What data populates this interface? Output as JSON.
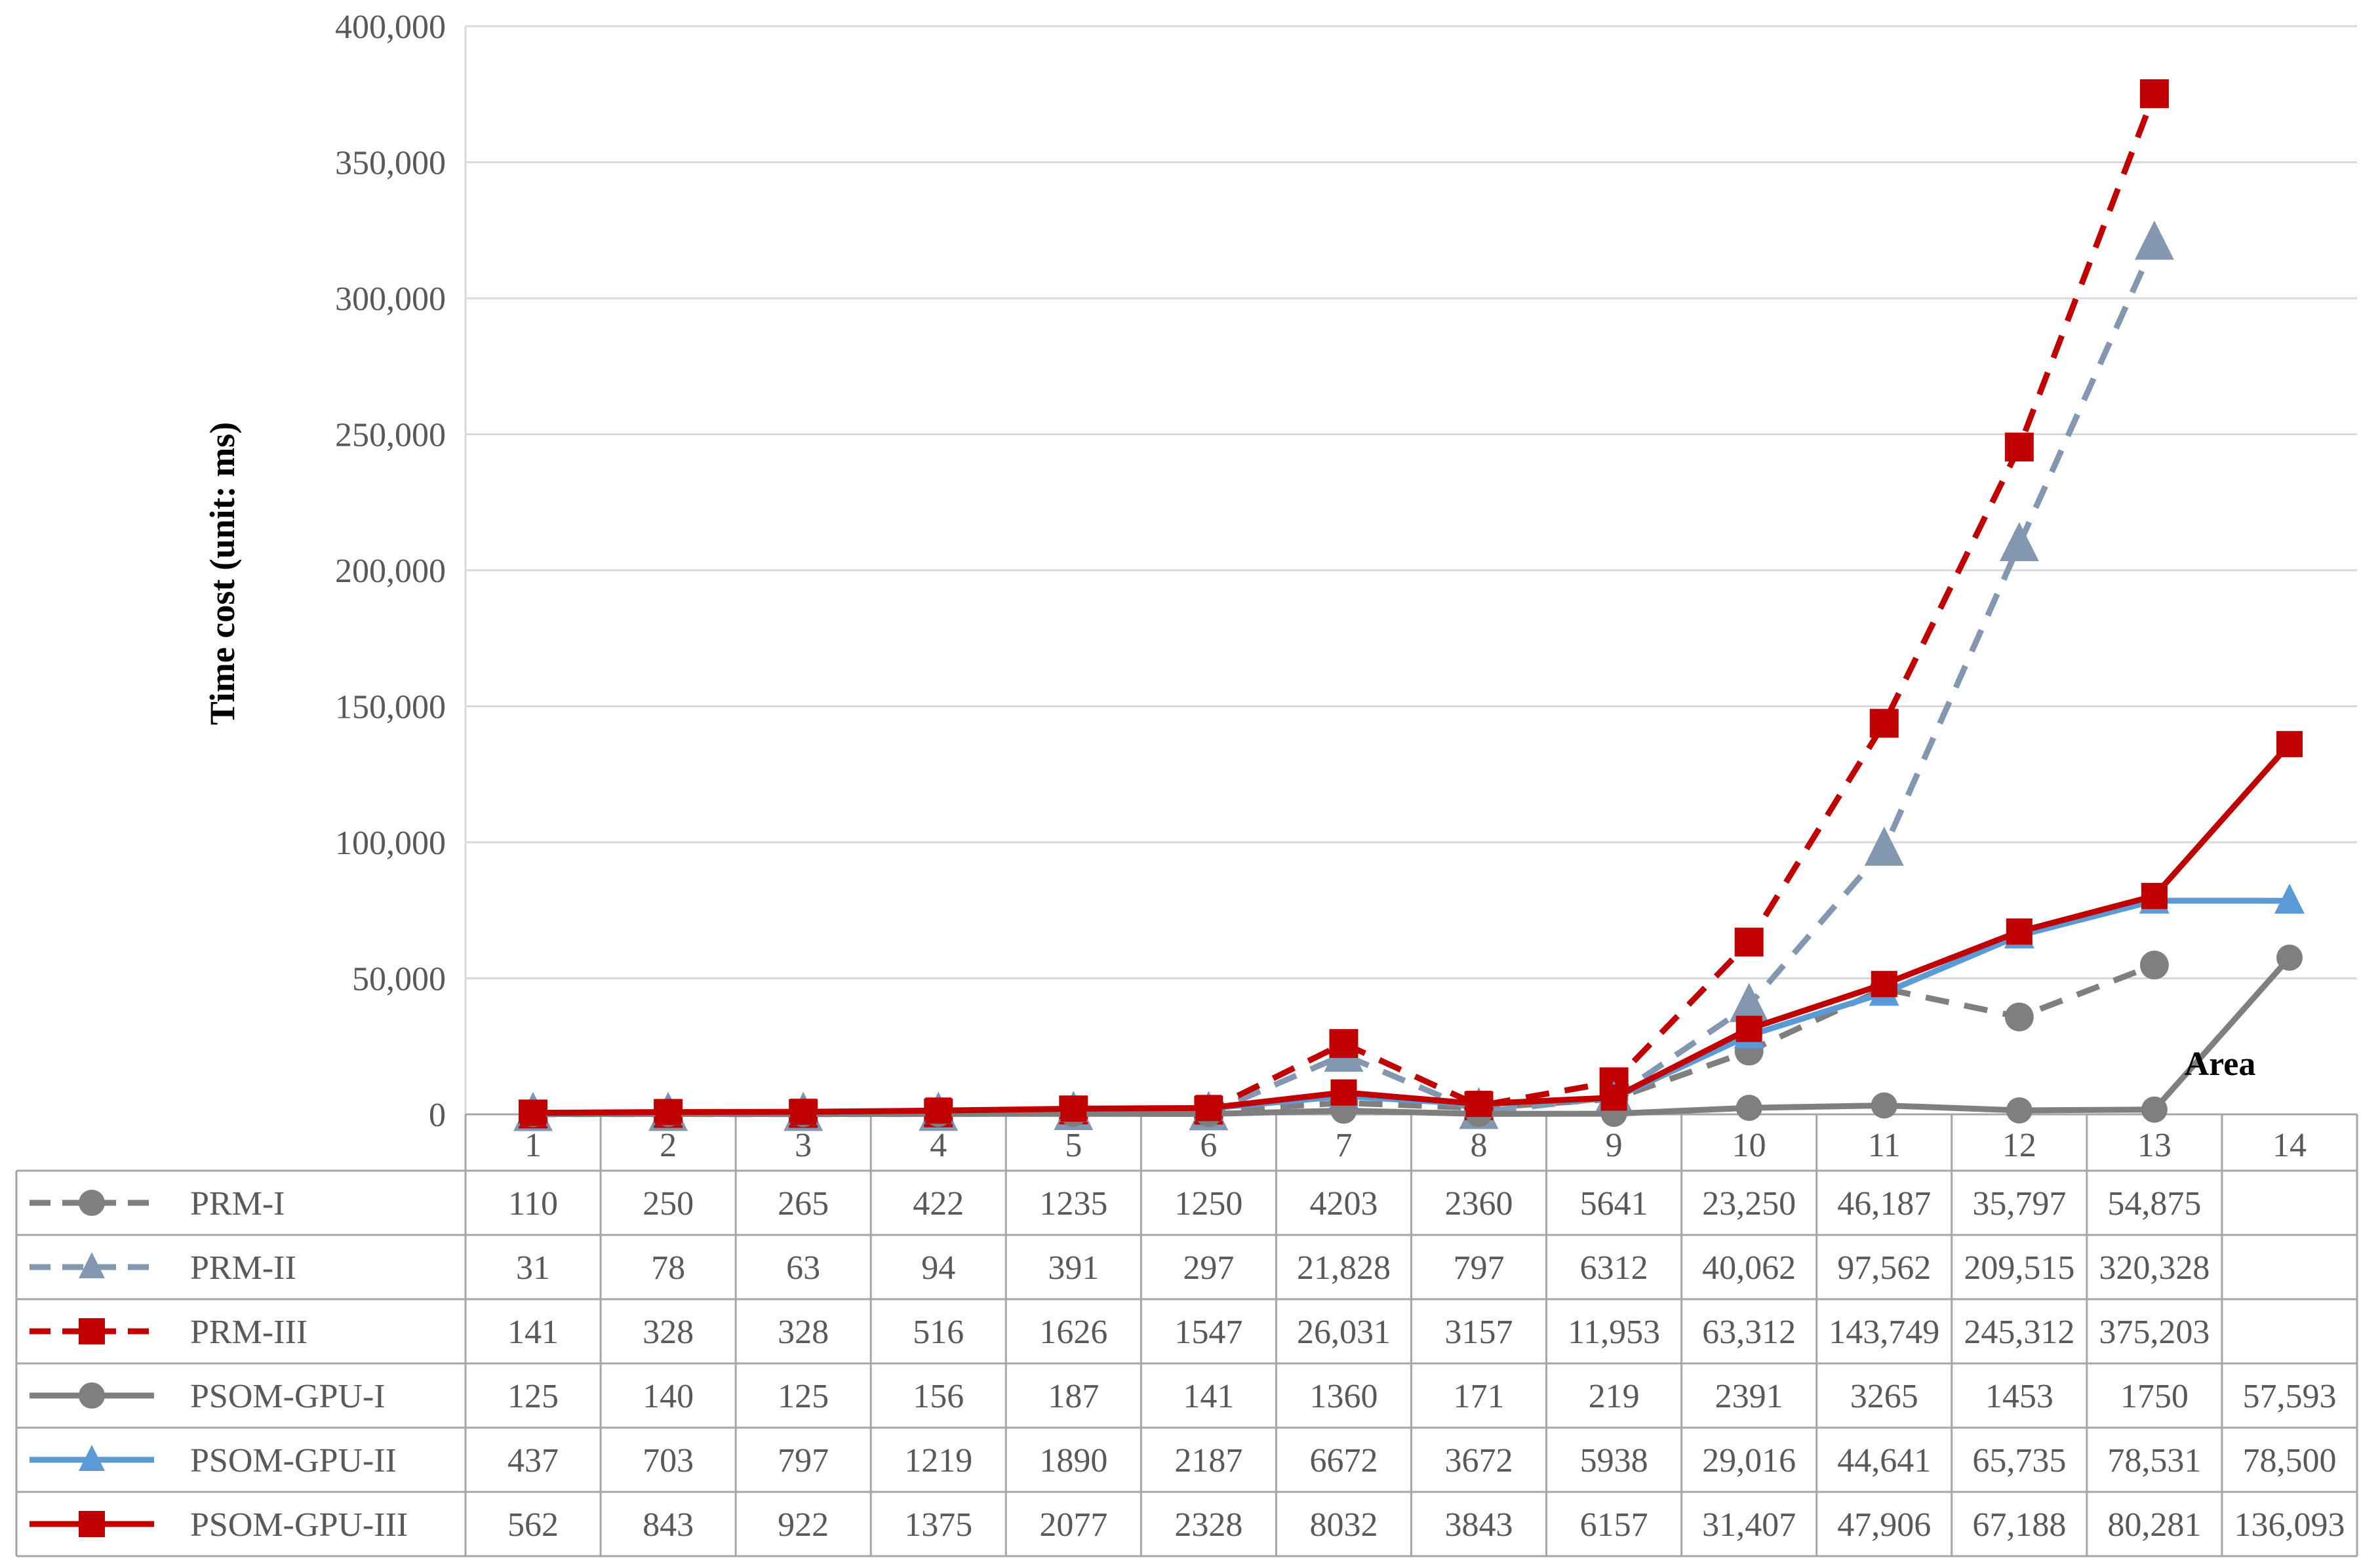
{
  "chart_data": {
    "type": "line",
    "ylabel": "Time cost (unit: ms)",
    "xlabel": "Area",
    "categories": [
      "1",
      "2",
      "3",
      "4",
      "5",
      "6",
      "7",
      "8",
      "9",
      "10",
      "11",
      "12",
      "13",
      "14"
    ],
    "ylim": [
      0,
      400000
    ],
    "yticks": [
      0,
      50000,
      100000,
      150000,
      200000,
      250000,
      300000,
      350000,
      400000
    ],
    "ytick_labels": [
      "0",
      "50,000",
      "100,000",
      "150,000",
      "200,000",
      "250,000",
      "300,000",
      "350,000",
      "400,000"
    ],
    "grid": true,
    "legend_placement": "data table below the plot",
    "series": [
      {
        "name": "PRM-I",
        "color": "#7f7f7f",
        "line": "dashed",
        "marker": "circle",
        "values": [
          110,
          250,
          265,
          422,
          1235,
          1250,
          4203,
          2360,
          5641,
          23250,
          46187,
          35797,
          54875,
          null
        ],
        "labels": [
          "110",
          "250",
          "265",
          "422",
          "1235",
          "1250",
          "4203",
          "2360",
          "5641",
          "23,250",
          "46,187",
          "35,797",
          "54,875",
          ""
        ]
      },
      {
        "name": "PRM-II",
        "color": "#8497b0",
        "line": "dashed",
        "marker": "triangle",
        "values": [
          31,
          78,
          63,
          94,
          391,
          297,
          21828,
          797,
          6312,
          40062,
          97562,
          209515,
          320328,
          null
        ],
        "labels": [
          "31",
          "78",
          "63",
          "94",
          "391",
          "297",
          "21,828",
          "797",
          "6312",
          "40,062",
          "97,562",
          "209,515",
          "320,328",
          ""
        ]
      },
      {
        "name": "PRM-III",
        "color": "#c00000",
        "line": "dashed",
        "marker": "square",
        "values": [
          141,
          328,
          328,
          516,
          1626,
          1547,
          26031,
          3157,
          11953,
          63312,
          143749,
          245312,
          375203,
          null
        ],
        "labels": [
          "141",
          "328",
          "328",
          "516",
          "1626",
          "1547",
          "26,031",
          "3157",
          "11,953",
          "63,312",
          "143,749",
          "245,312",
          "375,203",
          ""
        ]
      },
      {
        "name": "PSOM-GPU-I",
        "color": "#7f7f7f",
        "line": "solid",
        "marker": "circle",
        "values": [
          125,
          140,
          125,
          156,
          187,
          141,
          1360,
          171,
          219,
          2391,
          3265,
          1453,
          1750,
          57593
        ],
        "labels": [
          "125",
          "140",
          "125",
          "156",
          "187",
          "141",
          "1360",
          "171",
          "219",
          "2391",
          "3265",
          "1453",
          "1750",
          "57,593"
        ]
      },
      {
        "name": "PSOM-GPU-II",
        "color": "#5b9bd5",
        "line": "solid",
        "marker": "triangle",
        "values": [
          437,
          703,
          797,
          1219,
          1890,
          2187,
          6672,
          3672,
          5938,
          29016,
          44641,
          65735,
          78531,
          78500
        ],
        "labels": [
          "437",
          "703",
          "797",
          "1219",
          "1890",
          "2187",
          "6672",
          "3672",
          "5938",
          "29,016",
          "44,641",
          "65,735",
          "78,531",
          "78,500"
        ]
      },
      {
        "name": "PSOM-GPU-III",
        "color": "#c00000",
        "line": "solid",
        "marker": "square",
        "values": [
          562,
          843,
          922,
          1375,
          2077,
          2328,
          8032,
          3843,
          6157,
          31407,
          47906,
          67188,
          80281,
          136093
        ],
        "labels": [
          "562",
          "843",
          "922",
          "1375",
          "2077",
          "2328",
          "8032",
          "3843",
          "6157",
          "31,407",
          "47,906",
          "67,188",
          "80,281",
          "136,093"
        ]
      }
    ]
  }
}
